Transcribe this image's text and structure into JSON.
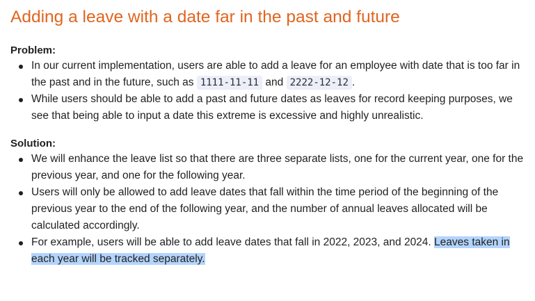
{
  "doc": {
    "title": "Adding a leave with a date far in the past and future",
    "problem": {
      "label": "Problem:",
      "bullets": [
        {
          "pre": "In our current implementation, users are able to add a leave for an employee with date that is too far in the past and in the future, such as ",
          "code1": "1111-11-11",
          "mid": " and ",
          "code2": "2222-12-12",
          "post": "."
        },
        {
          "text": "While users should be able to add a past and future dates as leaves for record keeping purposes, we see that being able to input a date this extreme is excessive and highly unrealistic."
        }
      ]
    },
    "solution": {
      "label": "Solution:",
      "bullets": [
        {
          "text": "We will enhance the leave list so that there are three separate lists, one for the current year, one for the previous year, and one for the following year."
        },
        {
          "text": "Users will only be allowed to add leave dates that fall within the time period of the beginning of the previous year to the end of the following year, and the number of annual leaves allocated will be calculated accordingly."
        },
        {
          "text": "For example, users will be able to add leave dates that fall in 2022, 2023, and 2024. ",
          "highlighted": "Leaves taken in each year will be tracked separately."
        }
      ]
    }
  },
  "colors": {
    "title": "#e0651f",
    "text": "#1f1f1f",
    "code_bg": "#eceef8",
    "selection_highlight": "#b3d4fc"
  }
}
